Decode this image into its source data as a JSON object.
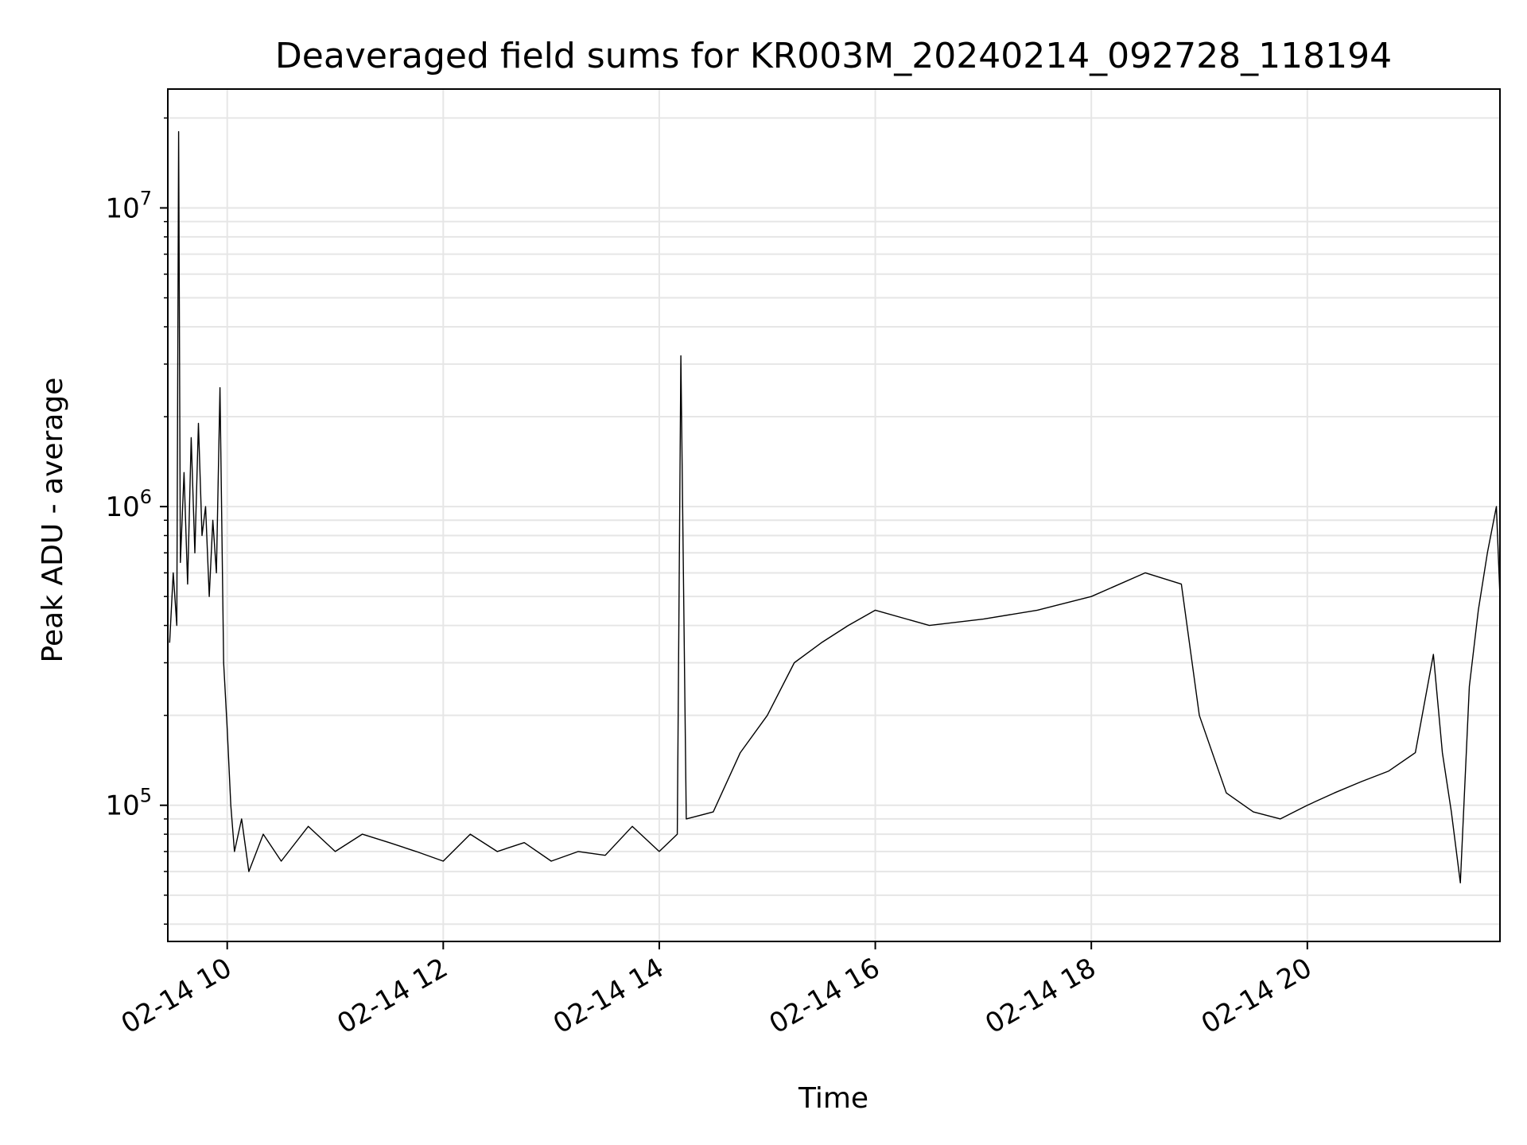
{
  "chart_data": {
    "type": "line",
    "title": "Deaveraged field sums for KR003M_20240214_092728_118194",
    "xlabel": "Time",
    "ylabel": "Peak ADU - average",
    "x_tick_labels": [
      "02-14 10",
      "02-14 12",
      "02-14 14",
      "02-14 16",
      "02-14 18",
      "02-14 20"
    ],
    "x_tick_values": [
      "2024-02-14 10:00",
      "2024-02-14 12:00",
      "2024-02-14 14:00",
      "2024-02-14 16:00",
      "2024-02-14 18:00",
      "2024-02-14 20:00"
    ],
    "xlim": [
      "2024-02-14 09:27",
      "2024-02-14 21:47"
    ],
    "yscale": "log",
    "ylim": [
      35000,
      25000000
    ],
    "y_tick_labels": [
      {
        "base": "10",
        "exp": "5",
        "value": 100000
      },
      {
        "base": "10",
        "exp": "6",
        "value": 1000000
      },
      {
        "base": "10",
        "exp": "7",
        "value": 10000000
      }
    ],
    "grid": true,
    "legend": "none",
    "line_color": "#000000",
    "grid_color": "#e6e6e6",
    "series": [
      {
        "points": [
          [
            "2024-02-14 09:28",
            350000
          ],
          [
            "2024-02-14 09:30",
            600000
          ],
          [
            "2024-02-14 09:32",
            400000
          ],
          [
            "2024-02-14 09:33",
            18000000
          ],
          [
            "2024-02-14 09:34",
            650000
          ],
          [
            "2024-02-14 09:36",
            1300000
          ],
          [
            "2024-02-14 09:38",
            550000
          ],
          [
            "2024-02-14 09:40",
            1700000
          ],
          [
            "2024-02-14 09:42",
            700000
          ],
          [
            "2024-02-14 09:44",
            1900000
          ],
          [
            "2024-02-14 09:46",
            800000
          ],
          [
            "2024-02-14 09:48",
            1000000
          ],
          [
            "2024-02-14 09:50",
            500000
          ],
          [
            "2024-02-14 09:52",
            900000
          ],
          [
            "2024-02-14 09:54",
            600000
          ],
          [
            "2024-02-14 09:56",
            2500000
          ],
          [
            "2024-02-14 09:58",
            300000
          ],
          [
            "2024-02-14 10:00",
            180000
          ],
          [
            "2024-02-14 10:02",
            100000
          ],
          [
            "2024-02-14 10:04",
            70000
          ],
          [
            "2024-02-14 10:08",
            90000
          ],
          [
            "2024-02-14 10:12",
            60000
          ],
          [
            "2024-02-14 10:20",
            80000
          ],
          [
            "2024-02-14 10:30",
            65000
          ],
          [
            "2024-02-14 10:45",
            85000
          ],
          [
            "2024-02-14 11:00",
            70000
          ],
          [
            "2024-02-14 11:15",
            80000
          ],
          [
            "2024-02-14 11:30",
            75000
          ],
          [
            "2024-02-14 11:45",
            70000
          ],
          [
            "2024-02-14 12:00",
            65000
          ],
          [
            "2024-02-14 12:15",
            80000
          ],
          [
            "2024-02-14 12:30",
            70000
          ],
          [
            "2024-02-14 12:45",
            75000
          ],
          [
            "2024-02-14 13:00",
            65000
          ],
          [
            "2024-02-14 13:15",
            70000
          ],
          [
            "2024-02-14 13:30",
            68000
          ],
          [
            "2024-02-14 13:45",
            85000
          ],
          [
            "2024-02-14 14:00",
            70000
          ],
          [
            "2024-02-14 14:10",
            80000
          ],
          [
            "2024-02-14 14:12",
            3200000
          ],
          [
            "2024-02-14 14:15",
            90000
          ],
          [
            "2024-02-14 14:30",
            95000
          ],
          [
            "2024-02-14 14:45",
            150000
          ],
          [
            "2024-02-14 15:00",
            200000
          ],
          [
            "2024-02-14 15:15",
            300000
          ],
          [
            "2024-02-14 15:30",
            350000
          ],
          [
            "2024-02-14 15:45",
            400000
          ],
          [
            "2024-02-14 16:00",
            450000
          ],
          [
            "2024-02-14 16:30",
            400000
          ],
          [
            "2024-02-14 17:00",
            420000
          ],
          [
            "2024-02-14 17:30",
            450000
          ],
          [
            "2024-02-14 18:00",
            500000
          ],
          [
            "2024-02-14 18:30",
            600000
          ],
          [
            "2024-02-14 18:50",
            550000
          ],
          [
            "2024-02-14 19:00",
            200000
          ],
          [
            "2024-02-14 19:15",
            110000
          ],
          [
            "2024-02-14 19:30",
            95000
          ],
          [
            "2024-02-14 19:45",
            90000
          ],
          [
            "2024-02-14 20:00",
            100000
          ],
          [
            "2024-02-14 20:15",
            110000
          ],
          [
            "2024-02-14 20:30",
            120000
          ],
          [
            "2024-02-14 20:45",
            130000
          ],
          [
            "2024-02-14 21:00",
            150000
          ],
          [
            "2024-02-14 21:10",
            320000
          ],
          [
            "2024-02-14 21:15",
            150000
          ],
          [
            "2024-02-14 21:20",
            95000
          ],
          [
            "2024-02-14 21:25",
            55000
          ],
          [
            "2024-02-14 21:30",
            250000
          ],
          [
            "2024-02-14 21:35",
            450000
          ],
          [
            "2024-02-14 21:40",
            700000
          ],
          [
            "2024-02-14 21:45",
            1000000
          ],
          [
            "2024-02-14 21:47",
            500000
          ]
        ]
      }
    ]
  }
}
